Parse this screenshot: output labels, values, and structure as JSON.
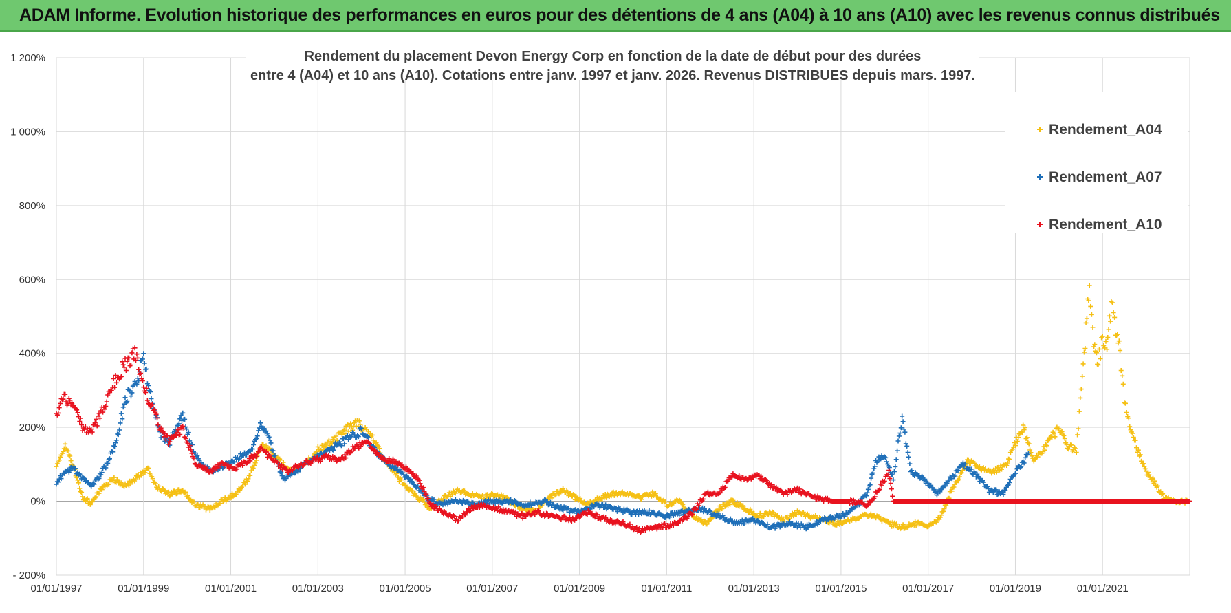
{
  "header": {
    "title": "ADAM Informe. Evolution historique des performances en euros pour des détentions de 4 ans (A04) à 10 ans (A10) avec les revenus connus distribués"
  },
  "chart_data": {
    "type": "scatter",
    "title_line1": "Rendement du placement Devon Energy Corp en fonction de la date de début pour des durées",
    "title_line2": "entre 4 (A04) et 10 ans (A10).  Cotations entre janv. 1997 et janv. 2026. Revenus DISTRIBUES depuis mars. 1997.",
    "x_ticks": [
      "01/01/1997",
      "01/01/1999",
      "01/01/2001",
      "01/01/2003",
      "01/01/2005",
      "01/01/2007",
      "01/01/2009",
      "01/01/2011",
      "01/01/2013",
      "01/01/2015",
      "01/01/2017",
      "01/01/2019",
      "01/01/2021"
    ],
    "y_ticks": [
      "- 200%",
      "0%",
      "200%",
      "400%",
      "600%",
      "800%",
      "1 000%",
      "1 200%"
    ],
    "xlim": [
      1997.0,
      2023.0
    ],
    "ylim": [
      -200,
      1200
    ],
    "legend_position": "top-right",
    "series": [
      {
        "name": "Rendement_A04",
        "color": "#f5c015",
        "points": [
          [
            1997.0,
            100
          ],
          [
            1997.2,
            150
          ],
          [
            1997.4,
            90
          ],
          [
            1997.6,
            10
          ],
          [
            1997.8,
            -5
          ],
          [
            1998.0,
            30
          ],
          [
            1998.3,
            60
          ],
          [
            1998.6,
            40
          ],
          [
            1998.9,
            70
          ],
          [
            1999.1,
            90
          ],
          [
            1999.3,
            40
          ],
          [
            1999.6,
            20
          ],
          [
            1999.9,
            30
          ],
          [
            2000.2,
            -10
          ],
          [
            2000.5,
            -20
          ],
          [
            2000.8,
            0
          ],
          [
            2001.1,
            20
          ],
          [
            2001.4,
            60
          ],
          [
            2001.7,
            150
          ],
          [
            2001.9,
            140
          ],
          [
            2002.1,
            110
          ],
          [
            2002.4,
            80
          ],
          [
            2002.7,
            100
          ],
          [
            2003.0,
            140
          ],
          [
            2003.3,
            160
          ],
          [
            2003.6,
            190
          ],
          [
            2003.9,
            210
          ],
          [
            2004.2,
            180
          ],
          [
            2004.5,
            120
          ],
          [
            2004.8,
            70
          ],
          [
            2005.0,
            40
          ],
          [
            2005.3,
            10
          ],
          [
            2005.6,
            -20
          ],
          [
            2005.9,
            10
          ],
          [
            2006.2,
            30
          ],
          [
            2006.5,
            20
          ],
          [
            2006.8,
            10
          ],
          [
            2007.1,
            20
          ],
          [
            2007.4,
            0
          ],
          [
            2007.7,
            -20
          ],
          [
            2008.0,
            -30
          ],
          [
            2008.3,
            10
          ],
          [
            2008.6,
            30
          ],
          [
            2008.9,
            10
          ],
          [
            2009.2,
            -10
          ],
          [
            2009.5,
            10
          ],
          [
            2009.8,
            20
          ],
          [
            2010.1,
            20
          ],
          [
            2010.4,
            10
          ],
          [
            2010.7,
            20
          ],
          [
            2011.0,
            -10
          ],
          [
            2011.3,
            0
          ],
          [
            2011.6,
            -40
          ],
          [
            2011.9,
            -60
          ],
          [
            2012.2,
            -20
          ],
          [
            2012.5,
            0
          ],
          [
            2012.8,
            -20
          ],
          [
            2013.1,
            -40
          ],
          [
            2013.4,
            -30
          ],
          [
            2013.7,
            -50
          ],
          [
            2014.0,
            -30
          ],
          [
            2014.3,
            -40
          ],
          [
            2014.6,
            -50
          ],
          [
            2014.9,
            -60
          ],
          [
            2015.2,
            -50
          ],
          [
            2015.5,
            -40
          ],
          [
            2015.8,
            -40
          ],
          [
            2016.1,
            -60
          ],
          [
            2016.4,
            -70
          ],
          [
            2016.7,
            -60
          ],
          [
            2017.0,
            -70
          ],
          [
            2017.3,
            -40
          ],
          [
            2017.5,
            20
          ],
          [
            2017.7,
            60
          ],
          [
            2017.9,
            110
          ],
          [
            2018.2,
            90
          ],
          [
            2018.5,
            80
          ],
          [
            2018.8,
            100
          ],
          [
            2019.0,
            160
          ],
          [
            2019.2,
            200
          ],
          [
            2019.4,
            110
          ],
          [
            2019.7,
            150
          ],
          [
            2020.0,
            200
          ],
          [
            2020.2,
            150
          ],
          [
            2020.4,
            140
          ],
          [
            2020.6,
            420
          ],
          [
            2020.7,
            600
          ],
          [
            2020.8,
            420
          ],
          [
            2020.9,
            380
          ],
          [
            2021.0,
            440
          ],
          [
            2021.1,
            420
          ],
          [
            2021.2,
            540
          ],
          [
            2021.3,
            470
          ],
          [
            2021.4,
            400
          ],
          [
            2021.5,
            280
          ],
          [
            2021.6,
            220
          ],
          [
            2021.8,
            140
          ],
          [
            2022.0,
            80
          ],
          [
            2022.2,
            50
          ],
          [
            2022.4,
            10
          ],
          [
            2022.6,
            0
          ],
          [
            2023.0,
            0
          ]
        ]
      },
      {
        "name": "Rendement_A07",
        "color": "#1f6fb8",
        "points": [
          [
            1997.0,
            50
          ],
          [
            1997.2,
            80
          ],
          [
            1997.4,
            90
          ],
          [
            1997.6,
            60
          ],
          [
            1997.8,
            40
          ],
          [
            1998.0,
            70
          ],
          [
            1998.2,
            110
          ],
          [
            1998.4,
            180
          ],
          [
            1998.6,
            280
          ],
          [
            1998.8,
            320
          ],
          [
            1999.0,
            380
          ],
          [
            1999.2,
            260
          ],
          [
            1999.4,
            180
          ],
          [
            1999.6,
            160
          ],
          [
            1999.9,
            230
          ],
          [
            2000.1,
            150
          ],
          [
            2000.3,
            100
          ],
          [
            2000.6,
            80
          ],
          [
            2000.9,
            100
          ],
          [
            2001.2,
            120
          ],
          [
            2001.5,
            140
          ],
          [
            2001.7,
            210
          ],
          [
            2001.9,
            160
          ],
          [
            2002.2,
            60
          ],
          [
            2002.5,
            80
          ],
          [
            2002.8,
            110
          ],
          [
            2003.1,
            130
          ],
          [
            2003.4,
            150
          ],
          [
            2003.7,
            170
          ],
          [
            2004.0,
            190
          ],
          [
            2004.3,
            140
          ],
          [
            2004.6,
            100
          ],
          [
            2004.9,
            80
          ],
          [
            2005.2,
            50
          ],
          [
            2005.5,
            10
          ],
          [
            2005.8,
            -10
          ],
          [
            2006.2,
            0
          ],
          [
            2006.6,
            -10
          ],
          [
            2007.0,
            0
          ],
          [
            2007.4,
            0
          ],
          [
            2007.8,
            -10
          ],
          [
            2008.2,
            0
          ],
          [
            2008.6,
            -20
          ],
          [
            2009.0,
            -30
          ],
          [
            2009.4,
            -10
          ],
          [
            2009.8,
            -20
          ],
          [
            2010.2,
            -30
          ],
          [
            2010.6,
            -30
          ],
          [
            2011.0,
            -40
          ],
          [
            2011.4,
            -30
          ],
          [
            2011.8,
            -20
          ],
          [
            2012.2,
            -40
          ],
          [
            2012.6,
            -60
          ],
          [
            2013.0,
            -50
          ],
          [
            2013.4,
            -70
          ],
          [
            2013.8,
            -60
          ],
          [
            2014.2,
            -70
          ],
          [
            2014.6,
            -50
          ],
          [
            2015.0,
            -40
          ],
          [
            2015.3,
            -20
          ],
          [
            2015.6,
            20
          ],
          [
            2015.8,
            110
          ],
          [
            2016.0,
            120
          ],
          [
            2016.2,
            60
          ],
          [
            2016.4,
            230
          ],
          [
            2016.6,
            80
          ],
          [
            2016.9,
            60
          ],
          [
            2017.2,
            20
          ],
          [
            2017.5,
            60
          ],
          [
            2017.8,
            100
          ],
          [
            2018.1,
            70
          ],
          [
            2018.4,
            30
          ],
          [
            2018.7,
            20
          ],
          [
            2019.0,
            80
          ],
          [
            2019.2,
            110
          ],
          [
            2019.3,
            130
          ]
        ]
      },
      {
        "name": "Rendement_A10",
        "color": "#e8121f",
        "points": [
          [
            1997.0,
            240
          ],
          [
            1997.2,
            280
          ],
          [
            1997.4,
            260
          ],
          [
            1997.6,
            200
          ],
          [
            1997.8,
            190
          ],
          [
            1998.0,
            230
          ],
          [
            1998.2,
            290
          ],
          [
            1998.4,
            340
          ],
          [
            1998.6,
            370
          ],
          [
            1998.8,
            400
          ],
          [
            1999.0,
            310
          ],
          [
            1999.2,
            250
          ],
          [
            1999.4,
            190
          ],
          [
            1999.6,
            160
          ],
          [
            1999.9,
            200
          ],
          [
            2000.2,
            100
          ],
          [
            2000.5,
            80
          ],
          [
            2000.8,
            100
          ],
          [
            2001.1,
            90
          ],
          [
            2001.4,
            110
          ],
          [
            2001.7,
            140
          ],
          [
            2002.0,
            110
          ],
          [
            2002.3,
            80
          ],
          [
            2002.6,
            100
          ],
          [
            2002.9,
            110
          ],
          [
            2003.2,
            120
          ],
          [
            2003.5,
            110
          ],
          [
            2003.8,
            140
          ],
          [
            2004.1,
            160
          ],
          [
            2004.4,
            120
          ],
          [
            2004.7,
            110
          ],
          [
            2005.0,
            90
          ],
          [
            2005.3,
            60
          ],
          [
            2005.6,
            -10
          ],
          [
            2005.9,
            -30
          ],
          [
            2006.2,
            -50
          ],
          [
            2006.5,
            -20
          ],
          [
            2006.8,
            -10
          ],
          [
            2007.1,
            -20
          ],
          [
            2007.4,
            -30
          ],
          [
            2007.7,
            -40
          ],
          [
            2008.0,
            -30
          ],
          [
            2008.4,
            -40
          ],
          [
            2008.8,
            -50
          ],
          [
            2009.2,
            -30
          ],
          [
            2009.6,
            -50
          ],
          [
            2010.0,
            -60
          ],
          [
            2010.4,
            -80
          ],
          [
            2010.8,
            -70
          ],
          [
            2011.2,
            -60
          ],
          [
            2011.6,
            -30
          ],
          [
            2011.9,
            20
          ],
          [
            2012.2,
            20
          ],
          [
            2012.5,
            70
          ],
          [
            2012.8,
            60
          ],
          [
            2013.1,
            70
          ],
          [
            2013.4,
            40
          ],
          [
            2013.7,
            20
          ],
          [
            2014.0,
            30
          ],
          [
            2014.4,
            10
          ],
          [
            2014.8,
            0
          ],
          [
            2015.2,
            0
          ],
          [
            2015.6,
            -10
          ],
          [
            2015.8,
            20
          ],
          [
            2016.0,
            60
          ],
          [
            2016.1,
            80
          ],
          [
            2016.2,
            0
          ],
          [
            2017.0,
            0
          ],
          [
            2018.0,
            0
          ],
          [
            2019.0,
            0
          ],
          [
            2020.0,
            0
          ],
          [
            2021.0,
            0
          ],
          [
            2022.0,
            0
          ],
          [
            2023.0,
            0
          ]
        ]
      }
    ]
  }
}
